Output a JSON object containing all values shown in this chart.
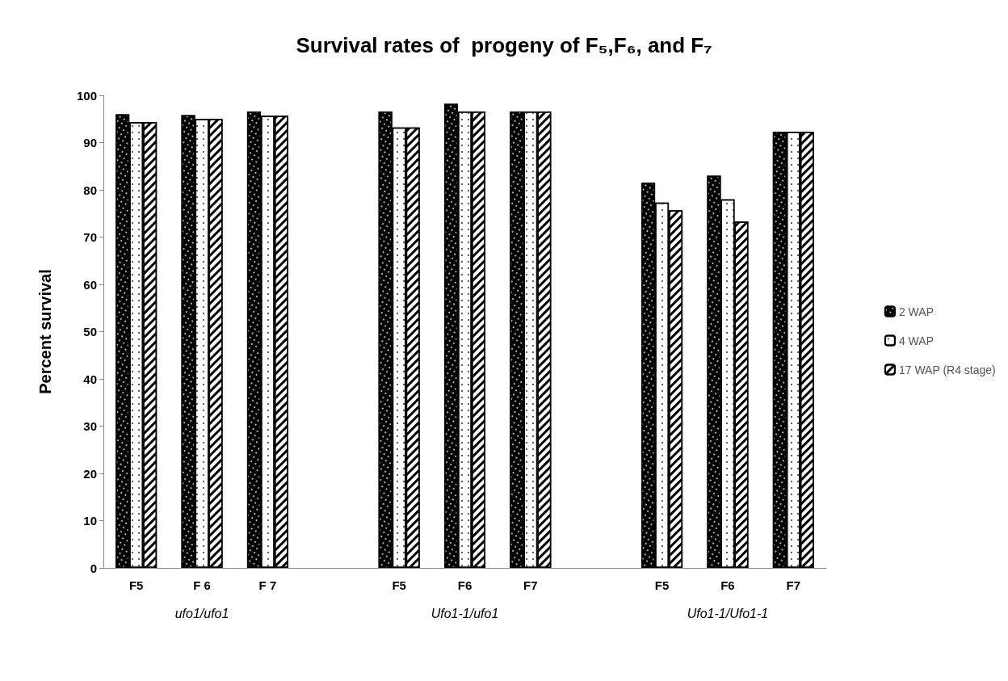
{
  "chart_data": {
    "type": "bar",
    "title": "Survival rates of  progeny of F₅,F₆, and F₇",
    "ylabel": "Percent survival",
    "categories": [
      "F5",
      "F 6",
      "F 7",
      null,
      "F5",
      "F6",
      "F7",
      null,
      "F5",
      "F6",
      "F7"
    ],
    "series": [
      {
        "name": "2 WAP",
        "color": "#000000",
        "values": [
          96,
          95.8,
          96.6,
          null,
          96.6,
          98.2,
          96.6,
          null,
          81.5,
          83,
          92.3
        ]
      },
      {
        "name": "4 WAP",
        "color": "#ffffff",
        "values": [
          94.3,
          95,
          95.7,
          null,
          93.2,
          96.6,
          96.6,
          null,
          77.3,
          78,
          92.3
        ]
      },
      {
        "name": "17 WAP (R4 stage)",
        "color": "#ffffff",
        "values": [
          94.3,
          95,
          95.7,
          null,
          93.2,
          96.6,
          96.6,
          null,
          75.7,
          73.3,
          92.3
        ]
      }
    ],
    "annotations": [
      "ufo1/ufo1",
      "Ufo1-1/ufo1",
      "Ufo1-1/Ufo1-1"
    ],
    "ylim": [
      0,
      100
    ],
    "yticks": [
      0,
      10,
      20,
      30,
      40,
      50,
      60,
      70,
      80,
      90,
      100
    ],
    "grid": false,
    "legend": "right"
  }
}
